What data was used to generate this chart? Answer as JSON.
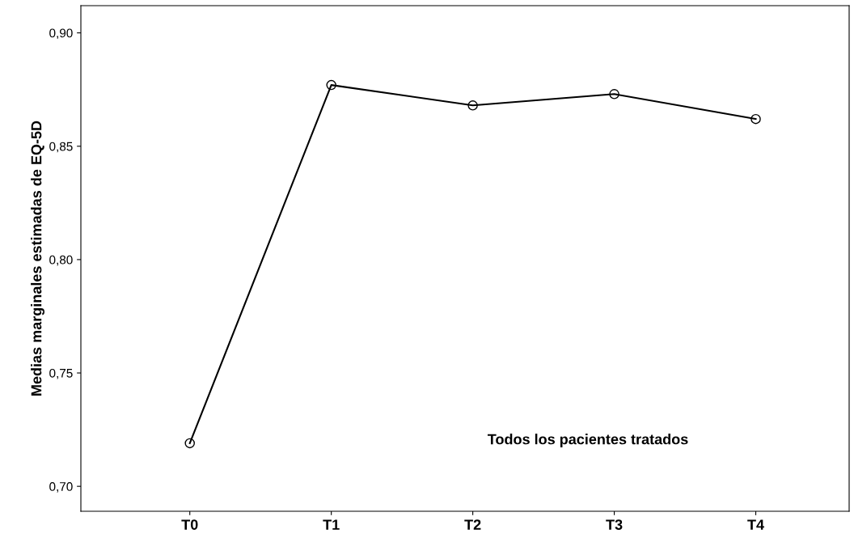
{
  "chart_data": {
    "type": "line",
    "ylabel": "Medias marginales estimadas de EQ-5D",
    "categories": [
      "T0",
      "T1",
      "T2",
      "T3",
      "T4"
    ],
    "series": [
      {
        "color": "#000000",
        "values": [
          0.719,
          0.877,
          0.868,
          0.873,
          0.862
        ]
      }
    ],
    "ylim": [
      0.689,
      0.912
    ],
    "yticks": [
      {
        "value": 0.7,
        "label": "0,70"
      },
      {
        "value": 0.75,
        "label": "0,75"
      },
      {
        "value": 0.8,
        "label": "0,80"
      },
      {
        "value": 0.85,
        "label": "0,85"
      },
      {
        "value": 0.9,
        "label": "0,90"
      }
    ],
    "annotations": [
      "Todos los pacientes tratados"
    ],
    "marker": "circle",
    "line_style": "solid",
    "grid": false,
    "legend": false
  }
}
